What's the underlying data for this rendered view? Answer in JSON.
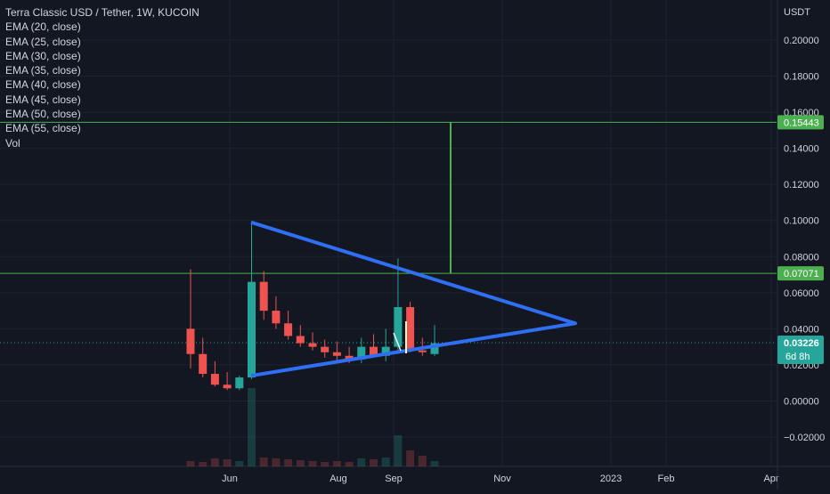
{
  "chart_data": {
    "type": "candlestick",
    "title": "Terra Classic USD / Tether, 1W, KUCOIN",
    "currency": "USDT",
    "indicators": [
      "EMA (20, close)",
      "EMA (25, close)",
      "EMA (30, close)",
      "EMA (35, close)",
      "EMA (40, close)",
      "EMA (45, close)",
      "EMA (50, close)",
      "EMA (55, close)",
      "Vol"
    ],
    "ylim": [
      -0.03,
      0.21
    ],
    "y_ticks": [
      "0.20000",
      "0.18000",
      "0.16000",
      "0.14000",
      "0.12000",
      "0.10000",
      "0.08000",
      "0.06000",
      "0.04000",
      "0.02000",
      "0.00000",
      "−0.02000"
    ],
    "x_ticks": [
      "Jun",
      "Aug",
      "Sep",
      "Nov",
      "2023",
      "Feb",
      "Apr"
    ],
    "candles": [
      {
        "o": 0.04,
        "h": 0.073,
        "l": 0.018,
        "c": 0.026
      },
      {
        "o": 0.026,
        "h": 0.035,
        "l": 0.013,
        "c": 0.015
      },
      {
        "o": 0.015,
        "h": 0.022,
        "l": 0.008,
        "c": 0.009
      },
      {
        "o": 0.009,
        "h": 0.016,
        "l": 0.006,
        "c": 0.007
      },
      {
        "o": 0.007,
        "h": 0.014,
        "l": 0.006,
        "c": 0.013
      },
      {
        "o": 0.013,
        "h": 0.099,
        "l": 0.012,
        "c": 0.066
      },
      {
        "o": 0.066,
        "h": 0.072,
        "l": 0.045,
        "c": 0.05
      },
      {
        "o": 0.05,
        "h": 0.058,
        "l": 0.04,
        "c": 0.043
      },
      {
        "o": 0.043,
        "h": 0.05,
        "l": 0.034,
        "c": 0.036
      },
      {
        "o": 0.036,
        "h": 0.042,
        "l": 0.03,
        "c": 0.032
      },
      {
        "o": 0.032,
        "h": 0.038,
        "l": 0.028,
        "c": 0.03
      },
      {
        "o": 0.03,
        "h": 0.034,
        "l": 0.024,
        "c": 0.027
      },
      {
        "o": 0.027,
        "h": 0.033,
        "l": 0.022,
        "c": 0.025
      },
      {
        "o": 0.025,
        "h": 0.03,
        "l": 0.021,
        "c": 0.023
      },
      {
        "o": 0.023,
        "h": 0.035,
        "l": 0.021,
        "c": 0.03
      },
      {
        "o": 0.03,
        "h": 0.037,
        "l": 0.024,
        "c": 0.025
      },
      {
        "o": 0.025,
        "h": 0.04,
        "l": 0.022,
        "c": 0.03
      },
      {
        "o": 0.03,
        "h": 0.079,
        "l": 0.028,
        "c": 0.052
      },
      {
        "o": 0.052,
        "h": 0.055,
        "l": 0.027,
        "c": 0.028
      },
      {
        "o": 0.028,
        "h": 0.035,
        "l": 0.025,
        "c": 0.027
      },
      {
        "o": 0.026,
        "h": 0.042,
        "l": 0.025,
        "c": 0.032
      }
    ],
    "colors": {
      "up": "#26a69a",
      "down": "#ef5350",
      "triangle": "#2f6ff5",
      "level": "#4caf50",
      "last_price": "#26a69a",
      "background": "#131722",
      "grid": "#1e222d",
      "text": "#d1d4dc"
    },
    "triangle": {
      "points": [
        {
          "x": "2022-06-13",
          "y": 0.099
        },
        {
          "x": "2022-12-12",
          "y": 0.043
        },
        {
          "x": "2022-06-13",
          "y": 0.014
        }
      ]
    },
    "levels": [
      {
        "value": 0.15443,
        "label": "0.15443"
      },
      {
        "value": 0.07071,
        "label": "0.07071"
      }
    ],
    "target_line": {
      "x": "2022-10-03",
      "from": 0.0705,
      "to": 0.1544
    },
    "last_price": {
      "value": 0.03226,
      "label": "0.03226",
      "countdown": "6d 8h"
    },
    "grid": true
  }
}
